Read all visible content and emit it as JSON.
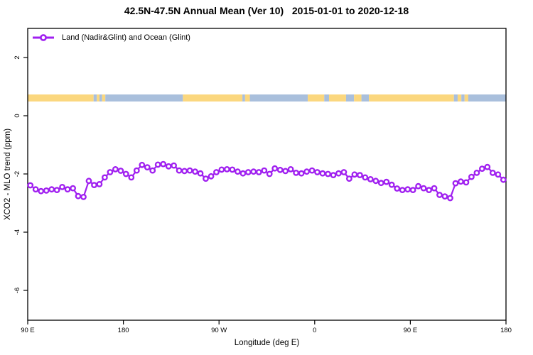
{
  "chart": {
    "title": "42.5N-47.5N Annual Mean (Ver 10)   2015-01-01 to 2020-12-18",
    "legend": {
      "label": "Land (Nadir&Glint) and Ocean (Glint)",
      "marker": "open-circle-on-line",
      "color": "#A020F0"
    },
    "chart_data": {
      "type": "line",
      "title": "42.5N-47.5N Annual Mean (Ver 10)   2015-01-01 to 2020-12-18",
      "xlabel": "Longitude (deg E)",
      "ylabel": "XCO2 - MLO trend (ppm)",
      "x_axis_note": "longitude wraps eastward over 450 degrees starting at 90E",
      "x_span_deg": 450,
      "x_ticks": [
        {
          "label": "90 E",
          "deg": 0
        },
        {
          "label": "180",
          "deg": 90
        },
        {
          "label": "90 W",
          "deg": 180
        },
        {
          "label": "0",
          "deg": 270
        },
        {
          "label": "90 E",
          "deg": 360
        },
        {
          "label": "180",
          "deg": 450
        }
      ],
      "y_ticks": [
        {
          "label": "2",
          "value": 2
        },
        {
          "label": "0",
          "value": 0
        },
        {
          "label": "-2",
          "value": -2
        },
        {
          "label": "-4",
          "value": -4
        },
        {
          "label": "-6",
          "value": -6
        }
      ],
      "ylim": [
        -7,
        3
      ],
      "grid": "off",
      "legend_position": "top-left-inside",
      "series": [
        {
          "name": "Land (Nadir&Glint) and Ocean (Glint)",
          "color": "#A020F0",
          "marker": "open-circle",
          "lon_start_deg_east": 92.5,
          "lon_step_deg": 5,
          "values": [
            -2.39,
            -2.53,
            -2.59,
            -2.57,
            -2.53,
            -2.55,
            -2.45,
            -2.53,
            -2.49,
            -2.76,
            -2.79,
            -2.24,
            -2.38,
            -2.35,
            -2.12,
            -1.94,
            -1.84,
            -1.89,
            -2.0,
            -2.12,
            -1.88,
            -1.69,
            -1.77,
            -1.88,
            -1.68,
            -1.66,
            -1.74,
            -1.71,
            -1.88,
            -1.9,
            -1.88,
            -1.92,
            -1.98,
            -2.16,
            -2.08,
            -1.94,
            -1.85,
            -1.84,
            -1.85,
            -1.92,
            -1.98,
            -1.94,
            -1.92,
            -1.94,
            -1.88,
            -2.0,
            -1.81,
            -1.86,
            -1.9,
            -1.84,
            -1.96,
            -1.98,
            -1.92,
            -1.88,
            -1.94,
            -1.98,
            -2.0,
            -2.04,
            -1.98,
            -1.94,
            -2.16,
            -2.02,
            -2.04,
            -2.12,
            -2.18,
            -2.24,
            -2.31,
            -2.27,
            -2.37,
            -2.5,
            -2.55,
            -2.53,
            -2.55,
            -2.42,
            -2.49,
            -2.55,
            -2.49,
            -2.72,
            -2.77,
            -2.83,
            -2.32,
            -2.26,
            -2.29,
            -2.1,
            -1.96,
            -1.82,
            -1.76,
            -1.96,
            -2.02,
            -2.2
          ]
        }
      ],
      "surface_band": {
        "description": "land/ocean strip drawn across plot",
        "y_range": [
          0.49,
          0.73
        ],
        "land_color": "#FBD77E",
        "ocean_color": "#A9BFDC",
        "segments_deg": [
          {
            "from": 0,
            "to": 62,
            "surface": "land"
          },
          {
            "from": 62,
            "to": 65,
            "surface": "ocean"
          },
          {
            "from": 65,
            "to": 67.5,
            "surface": "land"
          },
          {
            "from": 67.5,
            "to": 70,
            "surface": "ocean"
          },
          {
            "from": 70,
            "to": 73,
            "surface": "land"
          },
          {
            "from": 73,
            "to": 146,
            "surface": "ocean"
          },
          {
            "from": 146,
            "to": 202,
            "surface": "land"
          },
          {
            "from": 202,
            "to": 204.5,
            "surface": "ocean"
          },
          {
            "from": 204.5,
            "to": 209,
            "surface": "land"
          },
          {
            "from": 209,
            "to": 263.5,
            "surface": "ocean"
          },
          {
            "from": 263.5,
            "to": 279,
            "surface": "land"
          },
          {
            "from": 279,
            "to": 283.5,
            "surface": "ocean"
          },
          {
            "from": 283.5,
            "to": 299.5,
            "surface": "land"
          },
          {
            "from": 299.5,
            "to": 307,
            "surface": "ocean"
          },
          {
            "from": 307,
            "to": 314,
            "surface": "land"
          },
          {
            "from": 314,
            "to": 321,
            "surface": "ocean"
          },
          {
            "from": 321,
            "to": 401,
            "surface": "land"
          },
          {
            "from": 401,
            "to": 404.5,
            "surface": "ocean"
          },
          {
            "from": 404.5,
            "to": 408,
            "surface": "land"
          },
          {
            "from": 408,
            "to": 411,
            "surface": "ocean"
          },
          {
            "from": 411,
            "to": 414.5,
            "surface": "land"
          },
          {
            "from": 414.5,
            "to": 450,
            "surface": "ocean"
          }
        ]
      },
      "colors": {
        "series": "#A020F0",
        "frame": "#000000",
        "text": "#000000",
        "background": "#ffffff"
      }
    }
  }
}
